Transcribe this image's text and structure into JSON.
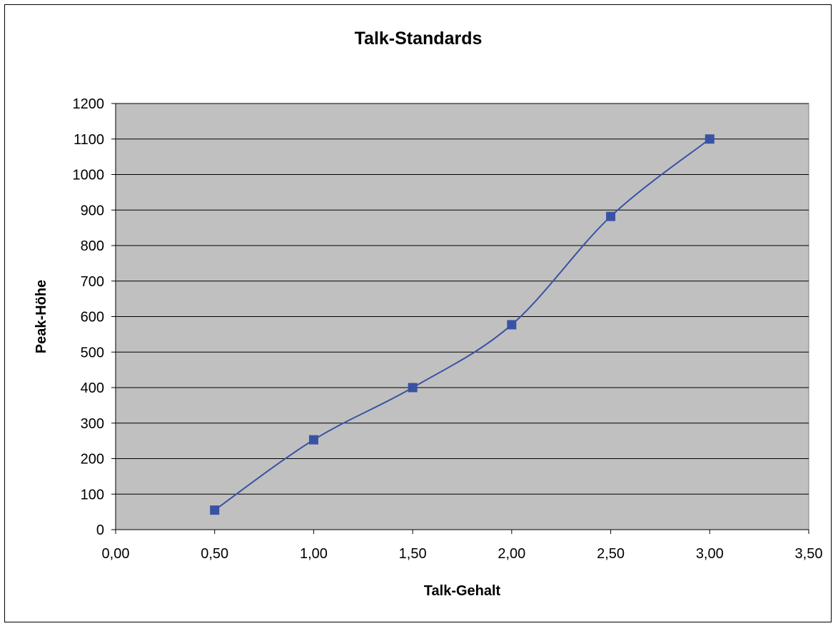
{
  "chart_data": {
    "type": "scatter",
    "title": "Talk-Standards",
    "xlabel": "Talk-Gehalt",
    "ylabel": "Peak-Höhe",
    "xlim": [
      0,
      3.5
    ],
    "ylim": [
      0,
      1200
    ],
    "x_ticks": [
      "0,00",
      "0,50",
      "1,00",
      "1,50",
      "2,00",
      "2,50",
      "3,00",
      "3,50"
    ],
    "y_ticks": [
      "0",
      "100",
      "200",
      "300",
      "400",
      "500",
      "600",
      "700",
      "800",
      "900",
      "1000",
      "1100",
      "1200"
    ],
    "grid": "horizontal",
    "legend": "none",
    "line_style": "smoothed",
    "colors": {
      "plot_background": "#c0c0c0",
      "series": "#3953a4",
      "gridline": "#000000"
    },
    "series": [
      {
        "points": [
          {
            "x": 0.5,
            "y": 55
          },
          {
            "x": 1.0,
            "y": 253
          },
          {
            "x": 1.5,
            "y": 400
          },
          {
            "x": 2.0,
            "y": 577
          },
          {
            "x": 2.5,
            "y": 882
          },
          {
            "x": 3.0,
            "y": 1100
          }
        ]
      }
    ]
  }
}
